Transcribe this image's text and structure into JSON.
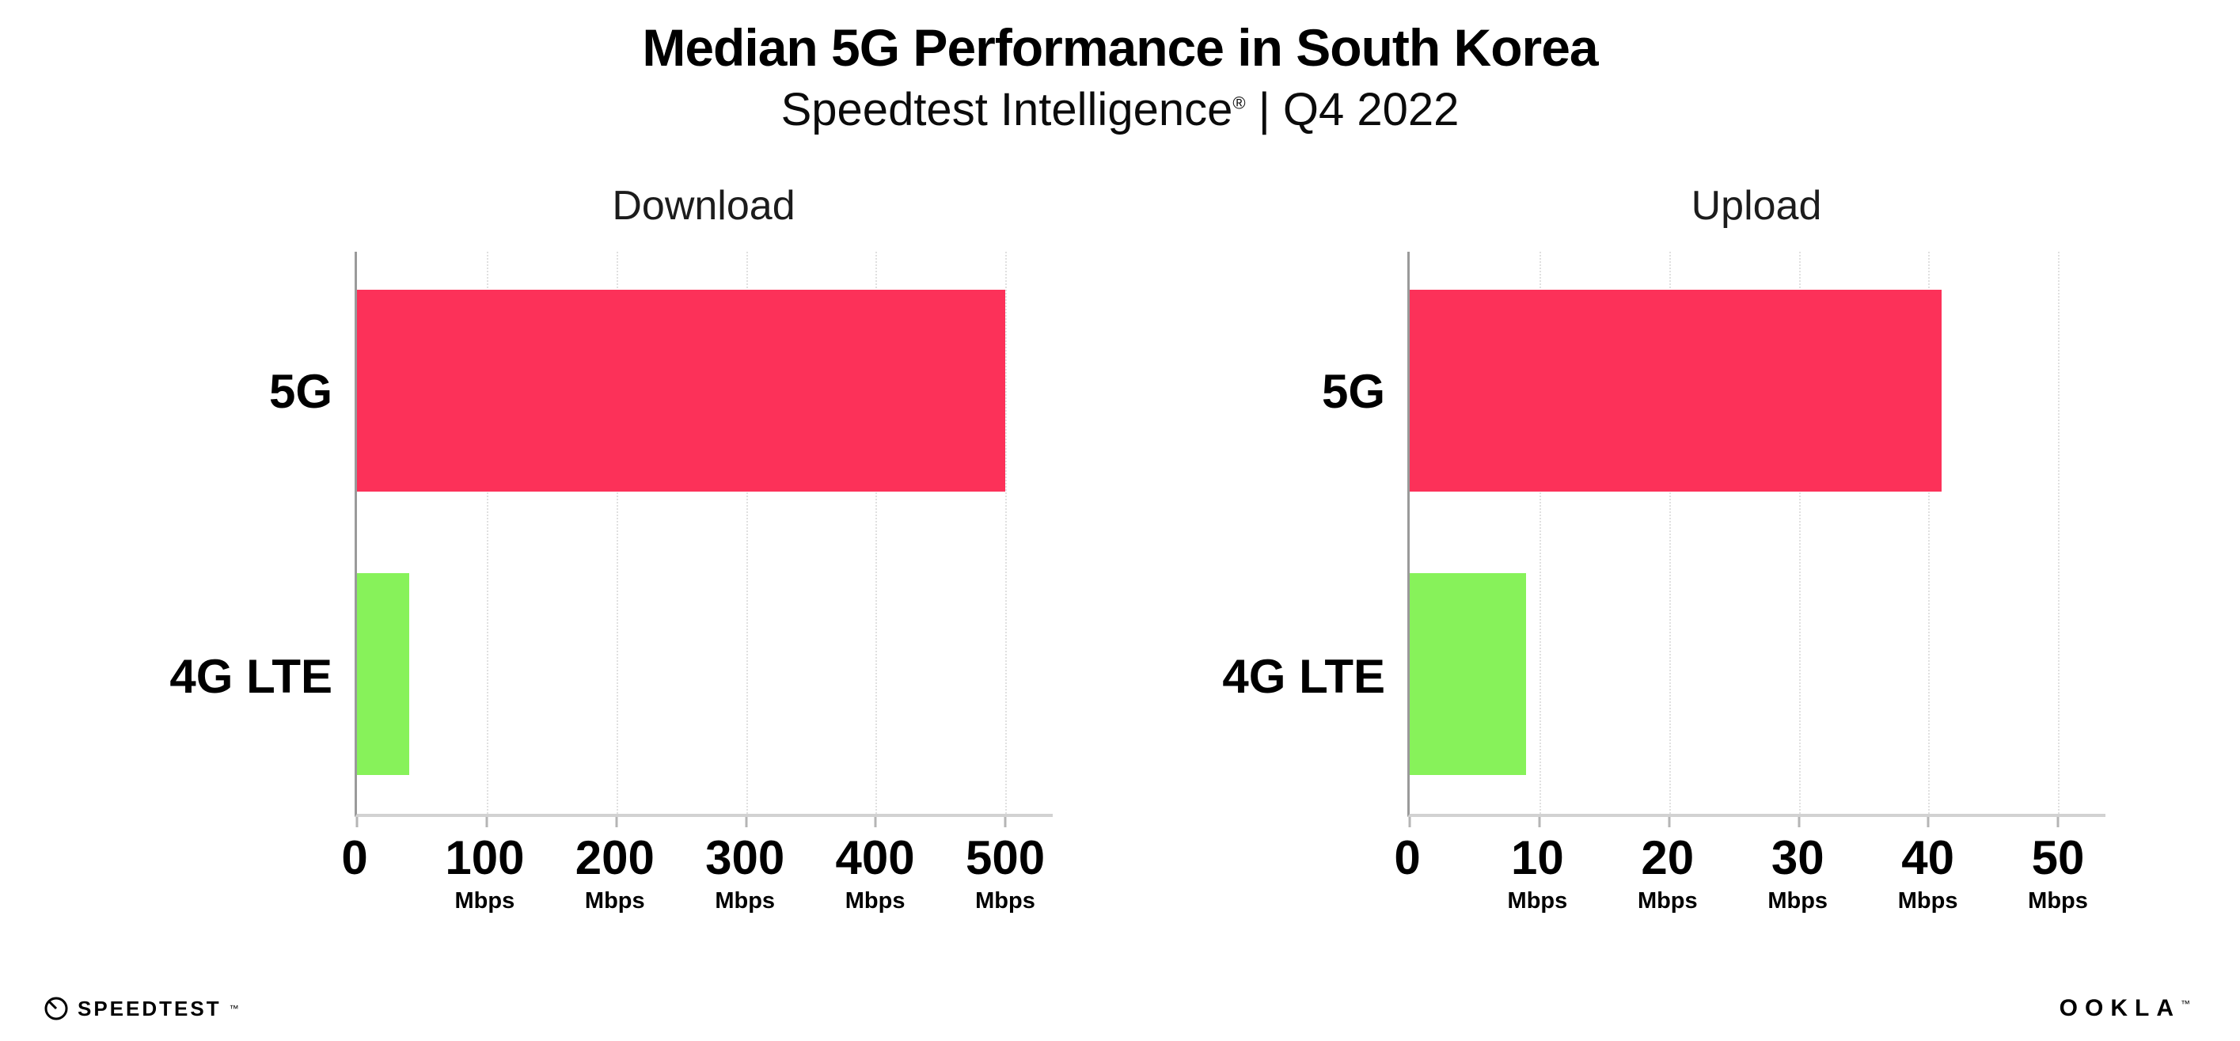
{
  "header": {
    "title": "Median 5G Performance in South Korea",
    "subtitle_brand": "Speedtest Intelligence",
    "subtitle_reg": "®",
    "subtitle_rest": " | Q4 2022"
  },
  "footer": {
    "speedtest_wordmark": "SPEEDTEST",
    "speedtest_tm": "™",
    "ookla_wordmark": "OOKLA",
    "ookla_tm": "™"
  },
  "colors": {
    "bar_5g": "#FC3159",
    "bar_4g_lte": "#87F25A",
    "axis": "#9a9a9a",
    "gridline": "#e0e0e0"
  },
  "chart_data": [
    {
      "type": "bar",
      "orientation": "horizontal",
      "title": "Download",
      "categories": [
        "5G",
        "4G LTE"
      ],
      "values": [
        500,
        40
      ],
      "unit": "Mbps",
      "xlim": [
        0,
        500
      ],
      "xticks": [
        0,
        100,
        200,
        300,
        400,
        500
      ],
      "bar_colors": [
        "#FC3159",
        "#87F25A"
      ],
      "grid": "dotted-vertical",
      "legend": "none"
    },
    {
      "type": "bar",
      "orientation": "horizontal",
      "title": "Upload",
      "categories": [
        "5G",
        "4G LTE"
      ],
      "values": [
        41,
        9
      ],
      "unit": "Mbps",
      "xlim": [
        0,
        50
      ],
      "xticks": [
        0,
        10,
        20,
        30,
        40,
        50
      ],
      "bar_colors": [
        "#FC3159",
        "#87F25A"
      ],
      "grid": "dotted-vertical",
      "legend": "none"
    }
  ]
}
